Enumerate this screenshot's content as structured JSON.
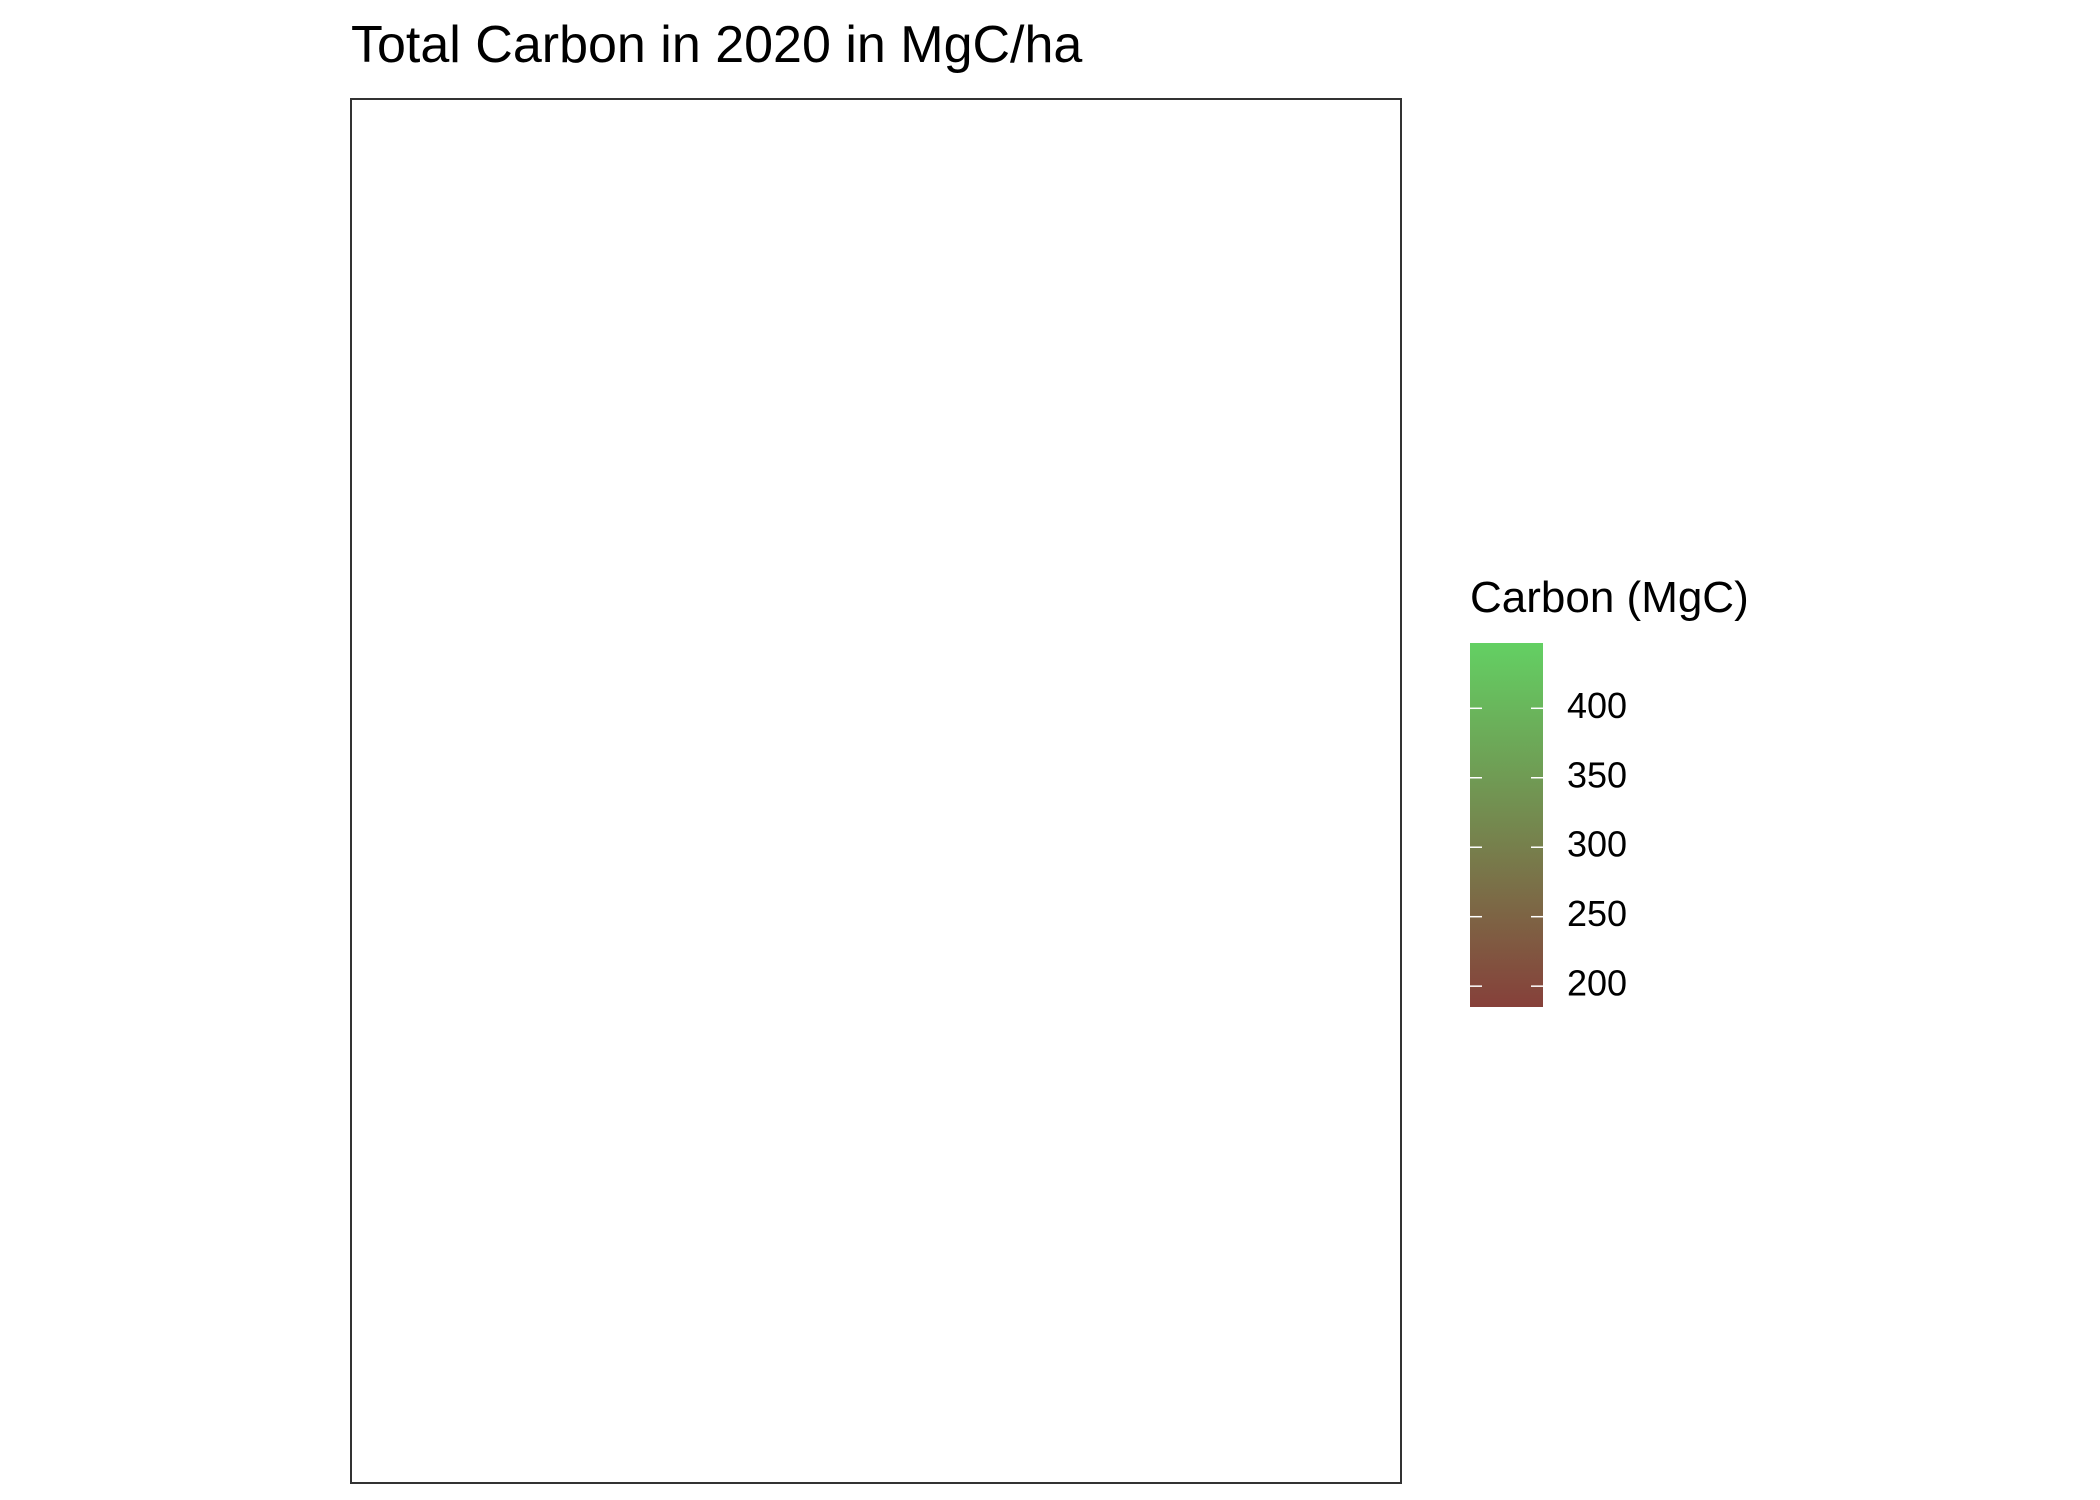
{
  "title": "Total Carbon in 2020 in MgC/ha",
  "legend": {
    "title": "Carbon (MgC)",
    "limits": [
      185,
      447
    ],
    "ticks": [
      200,
      250,
      300,
      350,
      400
    ],
    "colors": [
      "#86403a",
      "#63d063"
    ]
  }
}
